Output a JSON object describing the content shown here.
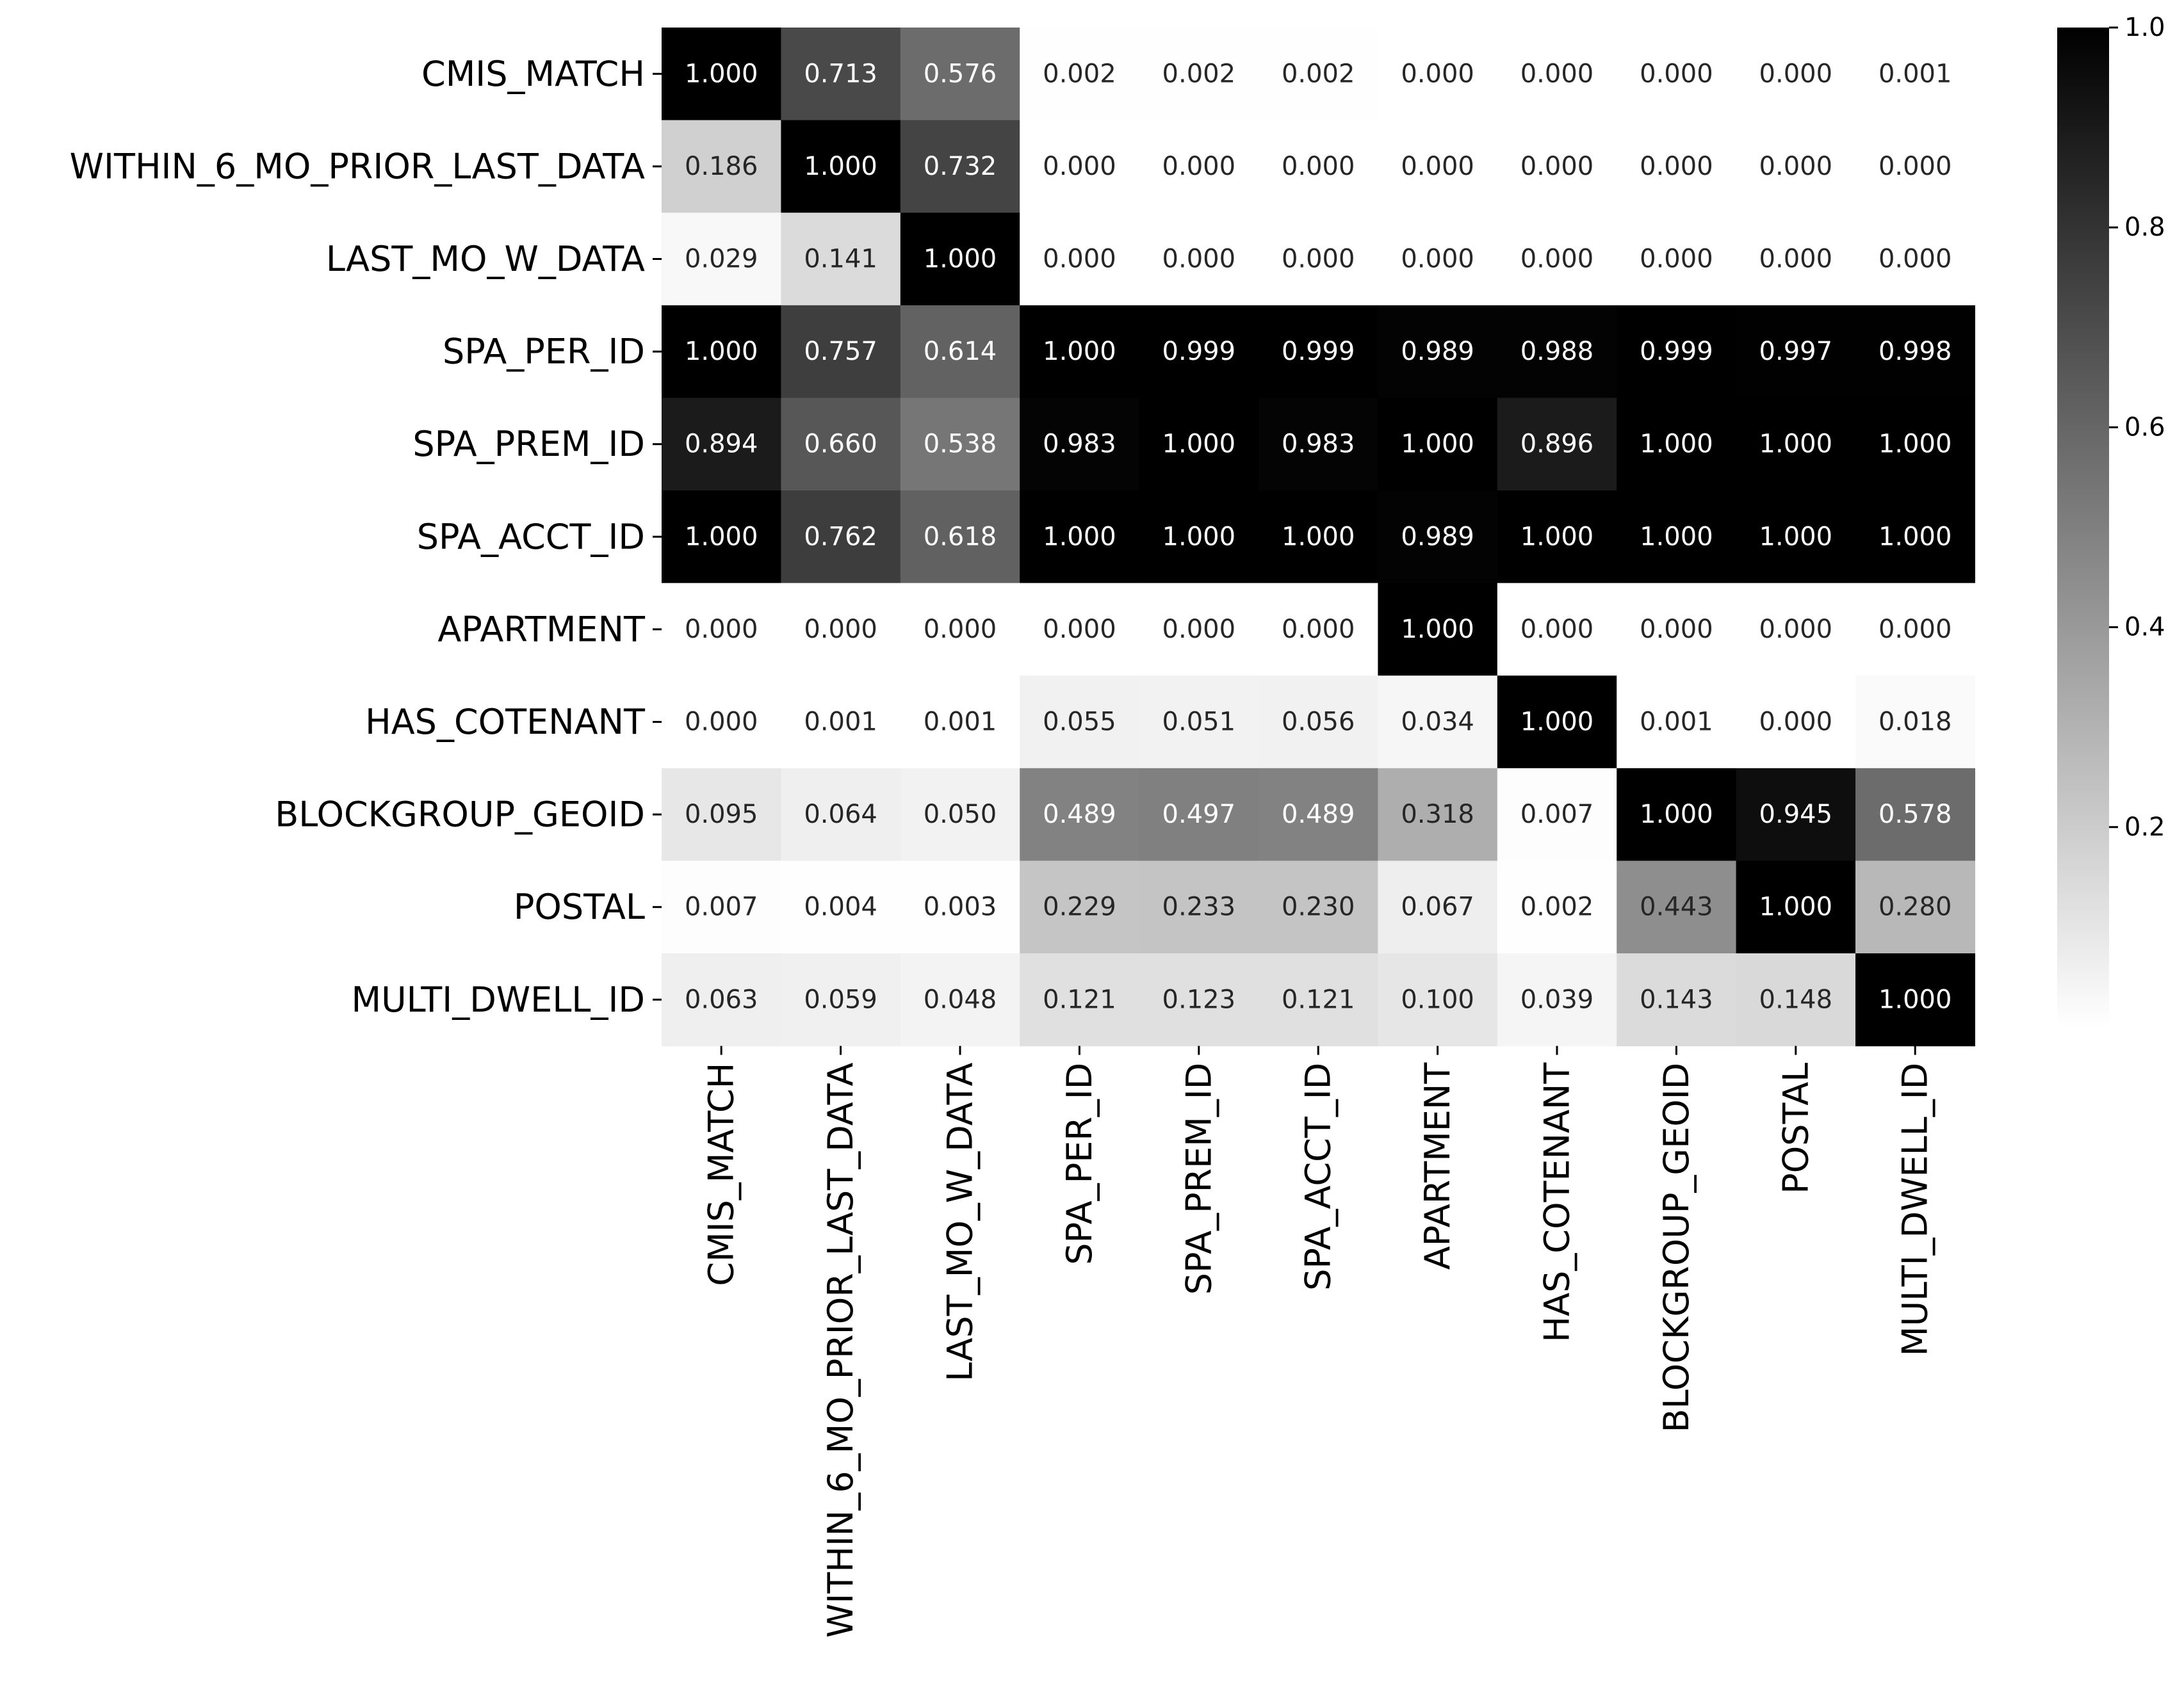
{
  "chart_data": {
    "type": "heatmap",
    "title": "",
    "xlabel": "",
    "ylabel": "",
    "rows": [
      "CMIS_MATCH",
      "WITHIN_6_MO_PRIOR_LAST_DATA",
      "LAST_MO_W_DATA",
      "SPA_PER_ID",
      "SPA_PREM_ID",
      "SPA_ACCT_ID",
      "APARTMENT",
      "HAS_COTENANT",
      "BLOCKGROUP_GEOID",
      "POSTAL",
      "MULTI_DWELL_ID"
    ],
    "columns": [
      "CMIS_MATCH",
      "WITHIN_6_MO_PRIOR_LAST_DATA",
      "LAST_MO_W_DATA",
      "SPA_PER_ID",
      "SPA_PREM_ID",
      "SPA_ACCT_ID",
      "APARTMENT",
      "HAS_COTENANT",
      "BLOCKGROUP_GEOID",
      "POSTAL",
      "MULTI_DWELL_ID"
    ],
    "values": [
      [
        "1.000",
        "0.713",
        "0.576",
        "0.002",
        "0.002",
        "0.002",
        "0.000",
        "0.000",
        "0.000",
        "0.000",
        "0.001"
      ],
      [
        "0.186",
        "1.000",
        "0.732",
        "0.000",
        "0.000",
        "0.000",
        "0.000",
        "0.000",
        "0.000",
        "0.000",
        "0.000"
      ],
      [
        "0.029",
        "0.141",
        "1.000",
        "0.000",
        "0.000",
        "0.000",
        "0.000",
        "0.000",
        "0.000",
        "0.000",
        "0.000"
      ],
      [
        "1.000",
        "0.757",
        "0.614",
        "1.000",
        "0.999",
        "0.999",
        "0.989",
        "0.988",
        "0.999",
        "0.997",
        "0.998"
      ],
      [
        "0.894",
        "0.660",
        "0.538",
        "0.983",
        "1.000",
        "0.983",
        "1.000",
        "0.896",
        "1.000",
        "1.000",
        "1.000"
      ],
      [
        "1.000",
        "0.762",
        "0.618",
        "1.000",
        "1.000",
        "1.000",
        "0.989",
        "1.000",
        "1.000",
        "1.000",
        "1.000"
      ],
      [
        "0.000",
        "0.000",
        "0.000",
        "0.000",
        "0.000",
        "0.000",
        "1.000",
        "0.000",
        "0.000",
        "0.000",
        "0.000"
      ],
      [
        "0.000",
        "0.001",
        "0.001",
        "0.055",
        "0.051",
        "0.056",
        "0.034",
        "1.000",
        "0.001",
        "0.000",
        "0.018"
      ],
      [
        "0.095",
        "0.064",
        "0.050",
        "0.489",
        "0.497",
        "0.489",
        "0.318",
        "0.007",
        "1.000",
        "0.945",
        "0.578"
      ],
      [
        "0.007",
        "0.004",
        "0.003",
        "0.229",
        "0.233",
        "0.230",
        "0.067",
        "0.002",
        "0.443",
        "1.000",
        "0.280"
      ],
      [
        "0.063",
        "0.059",
        "0.048",
        "0.121",
        "0.123",
        "0.121",
        "0.100",
        "0.039",
        "0.143",
        "0.148",
        "1.000"
      ]
    ],
    "colorbar": {
      "colormap": "grayscale (white = low, black = high)",
      "range": [
        0.0,
        1.0
      ],
      "ticks": [
        "0.2",
        "0.4",
        "0.6",
        "0.8",
        "1.0"
      ],
      "tick_values": [
        0.2,
        0.4,
        0.6,
        0.8,
        1.0
      ]
    },
    "colors": {
      "low": "#ffffff",
      "high": "#000000",
      "text_dark": "#262626",
      "text_light": "#ffffff"
    },
    "grid": false
  }
}
